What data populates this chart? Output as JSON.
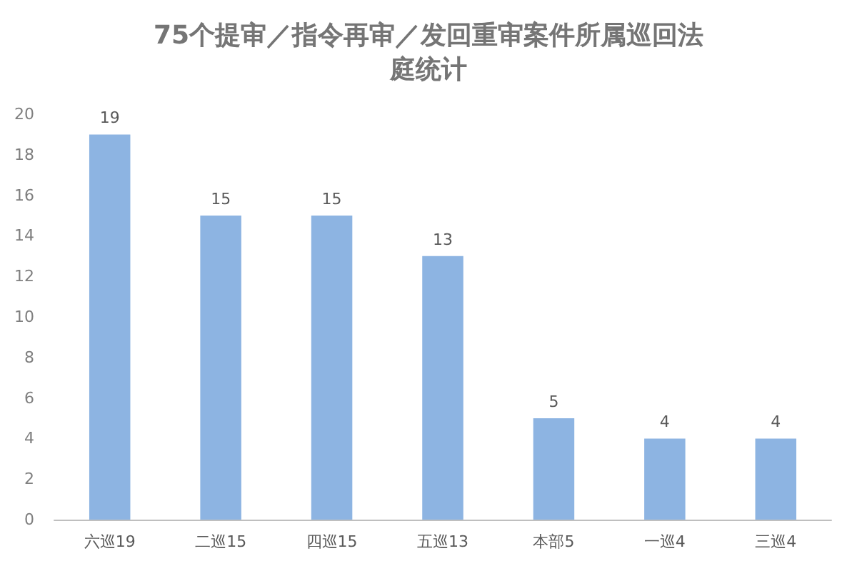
{
  "chart_data": {
    "type": "bar",
    "title": "75个提审／指令再审／发回重审案件所属巡回法庭统计",
    "categories": [
      "六巡19",
      "二巡15",
      "四巡15",
      "五巡13",
      "本部5",
      "一巡4",
      "三巡4"
    ],
    "values": [
      19,
      15,
      15,
      13,
      5,
      4,
      4
    ],
    "color": "#8db4e2",
    "ylim": [
      0,
      20
    ],
    "yticks": [
      0,
      2,
      4,
      6,
      8,
      10,
      12,
      14,
      16,
      18,
      20
    ],
    "grid": false,
    "data_labels": true
  }
}
